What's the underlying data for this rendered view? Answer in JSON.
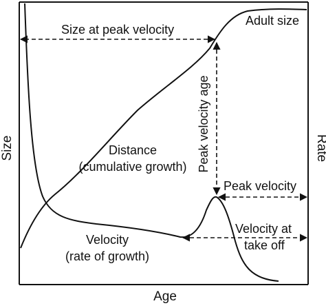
{
  "axes": {
    "left_label": "Size",
    "right_label": "Rate",
    "bottom_label": "Age"
  },
  "curves": {
    "distance": {
      "line1": "Distance",
      "line2": "(cumulative growth)"
    },
    "velocity": {
      "line1": "Velocity",
      "line2": "(rate of growth)"
    }
  },
  "annotations": {
    "adult_size": "Adult size",
    "size_at_peak_velocity": "Size at peak velocity",
    "peak_velocity_age": "Peak velocity age",
    "peak_velocity": "Peak velocity",
    "velocity_at_take_off_line1": "Velocity at",
    "velocity_at_take_off_line2": "take off"
  },
  "colors": {
    "ink": "#111111",
    "background": "#ffffff"
  }
}
